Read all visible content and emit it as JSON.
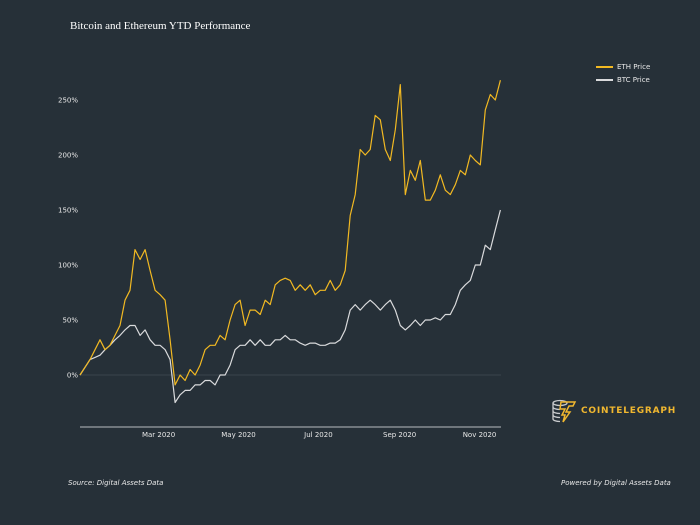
{
  "chart_data": {
    "type": "line",
    "title": "Bitcoin and Ethereum YTD Performance",
    "xlabel": "",
    "ylabel": "",
    "x_start": "2020-01-01",
    "x_step_days": 3.82,
    "xlim_days": [
      0,
      325
    ],
    "ylim": [
      -45,
      265
    ],
    "y_ticks": [
      0,
      50,
      100,
      150,
      200,
      250
    ],
    "y_tick_labels": [
      "0%",
      "50%",
      "100%",
      "150%",
      "200%",
      "250%"
    ],
    "x_ticks_days": [
      60,
      121,
      182,
      244,
      305
    ],
    "x_tick_labels": [
      "Mar 2020",
      "May 2020",
      "Jul 2020",
      "Sep 2020",
      "Nov 2020"
    ],
    "legend_position": "top-right",
    "series": [
      {
        "name": "ETH Price",
        "color": "#f2b922",
        "values": [
          0,
          7,
          14,
          23,
          32,
          23,
          27,
          36,
          45,
          68,
          77,
          114,
          105,
          114,
          95,
          77,
          73,
          68,
          32,
          -9,
          0,
          -5,
          5,
          0,
          9,
          23,
          27,
          27,
          36,
          32,
          50,
          64,
          68,
          45,
          59,
          59,
          55,
          68,
          64,
          82,
          86,
          88,
          86,
          77,
          82,
          77,
          82,
          73,
          77,
          77,
          86,
          77,
          82,
          95,
          145,
          164,
          205,
          200,
          205,
          236,
          232,
          205,
          195,
          223,
          264,
          164,
          186,
          177,
          195,
          159,
          159,
          168,
          182,
          168,
          164,
          173,
          186,
          182,
          200,
          195,
          191,
          241,
          255,
          250,
          268
        ]
      },
      {
        "name": "BTC Price",
        "color": "#d9dadc",
        "values": [
          0,
          7,
          14,
          16,
          18,
          23,
          27,
          32,
          36,
          41,
          45,
          45,
          36,
          41,
          32,
          27,
          27,
          23,
          14,
          -25,
          -18,
          -14,
          -14,
          -9,
          -9,
          -5,
          -5,
          -9,
          0,
          0,
          9,
          23,
          27,
          27,
          32,
          27,
          32,
          27,
          27,
          32,
          32,
          36,
          32,
          32,
          29,
          27,
          29,
          29,
          27,
          27,
          29,
          29,
          32,
          41,
          59,
          64,
          59,
          64,
          68,
          64,
          59,
          64,
          68,
          59,
          45,
          41,
          45,
          50,
          45,
          50,
          50,
          52,
          50,
          55,
          55,
          64,
          77,
          82,
          86,
          100,
          100,
          118,
          114,
          132,
          150
        ]
      }
    ]
  },
  "footer": {
    "source": "Source: Digital Assets Data",
    "powered": "Powered by Digital Assets Data"
  },
  "logo": {
    "text": "COINTELEGRAPH"
  }
}
